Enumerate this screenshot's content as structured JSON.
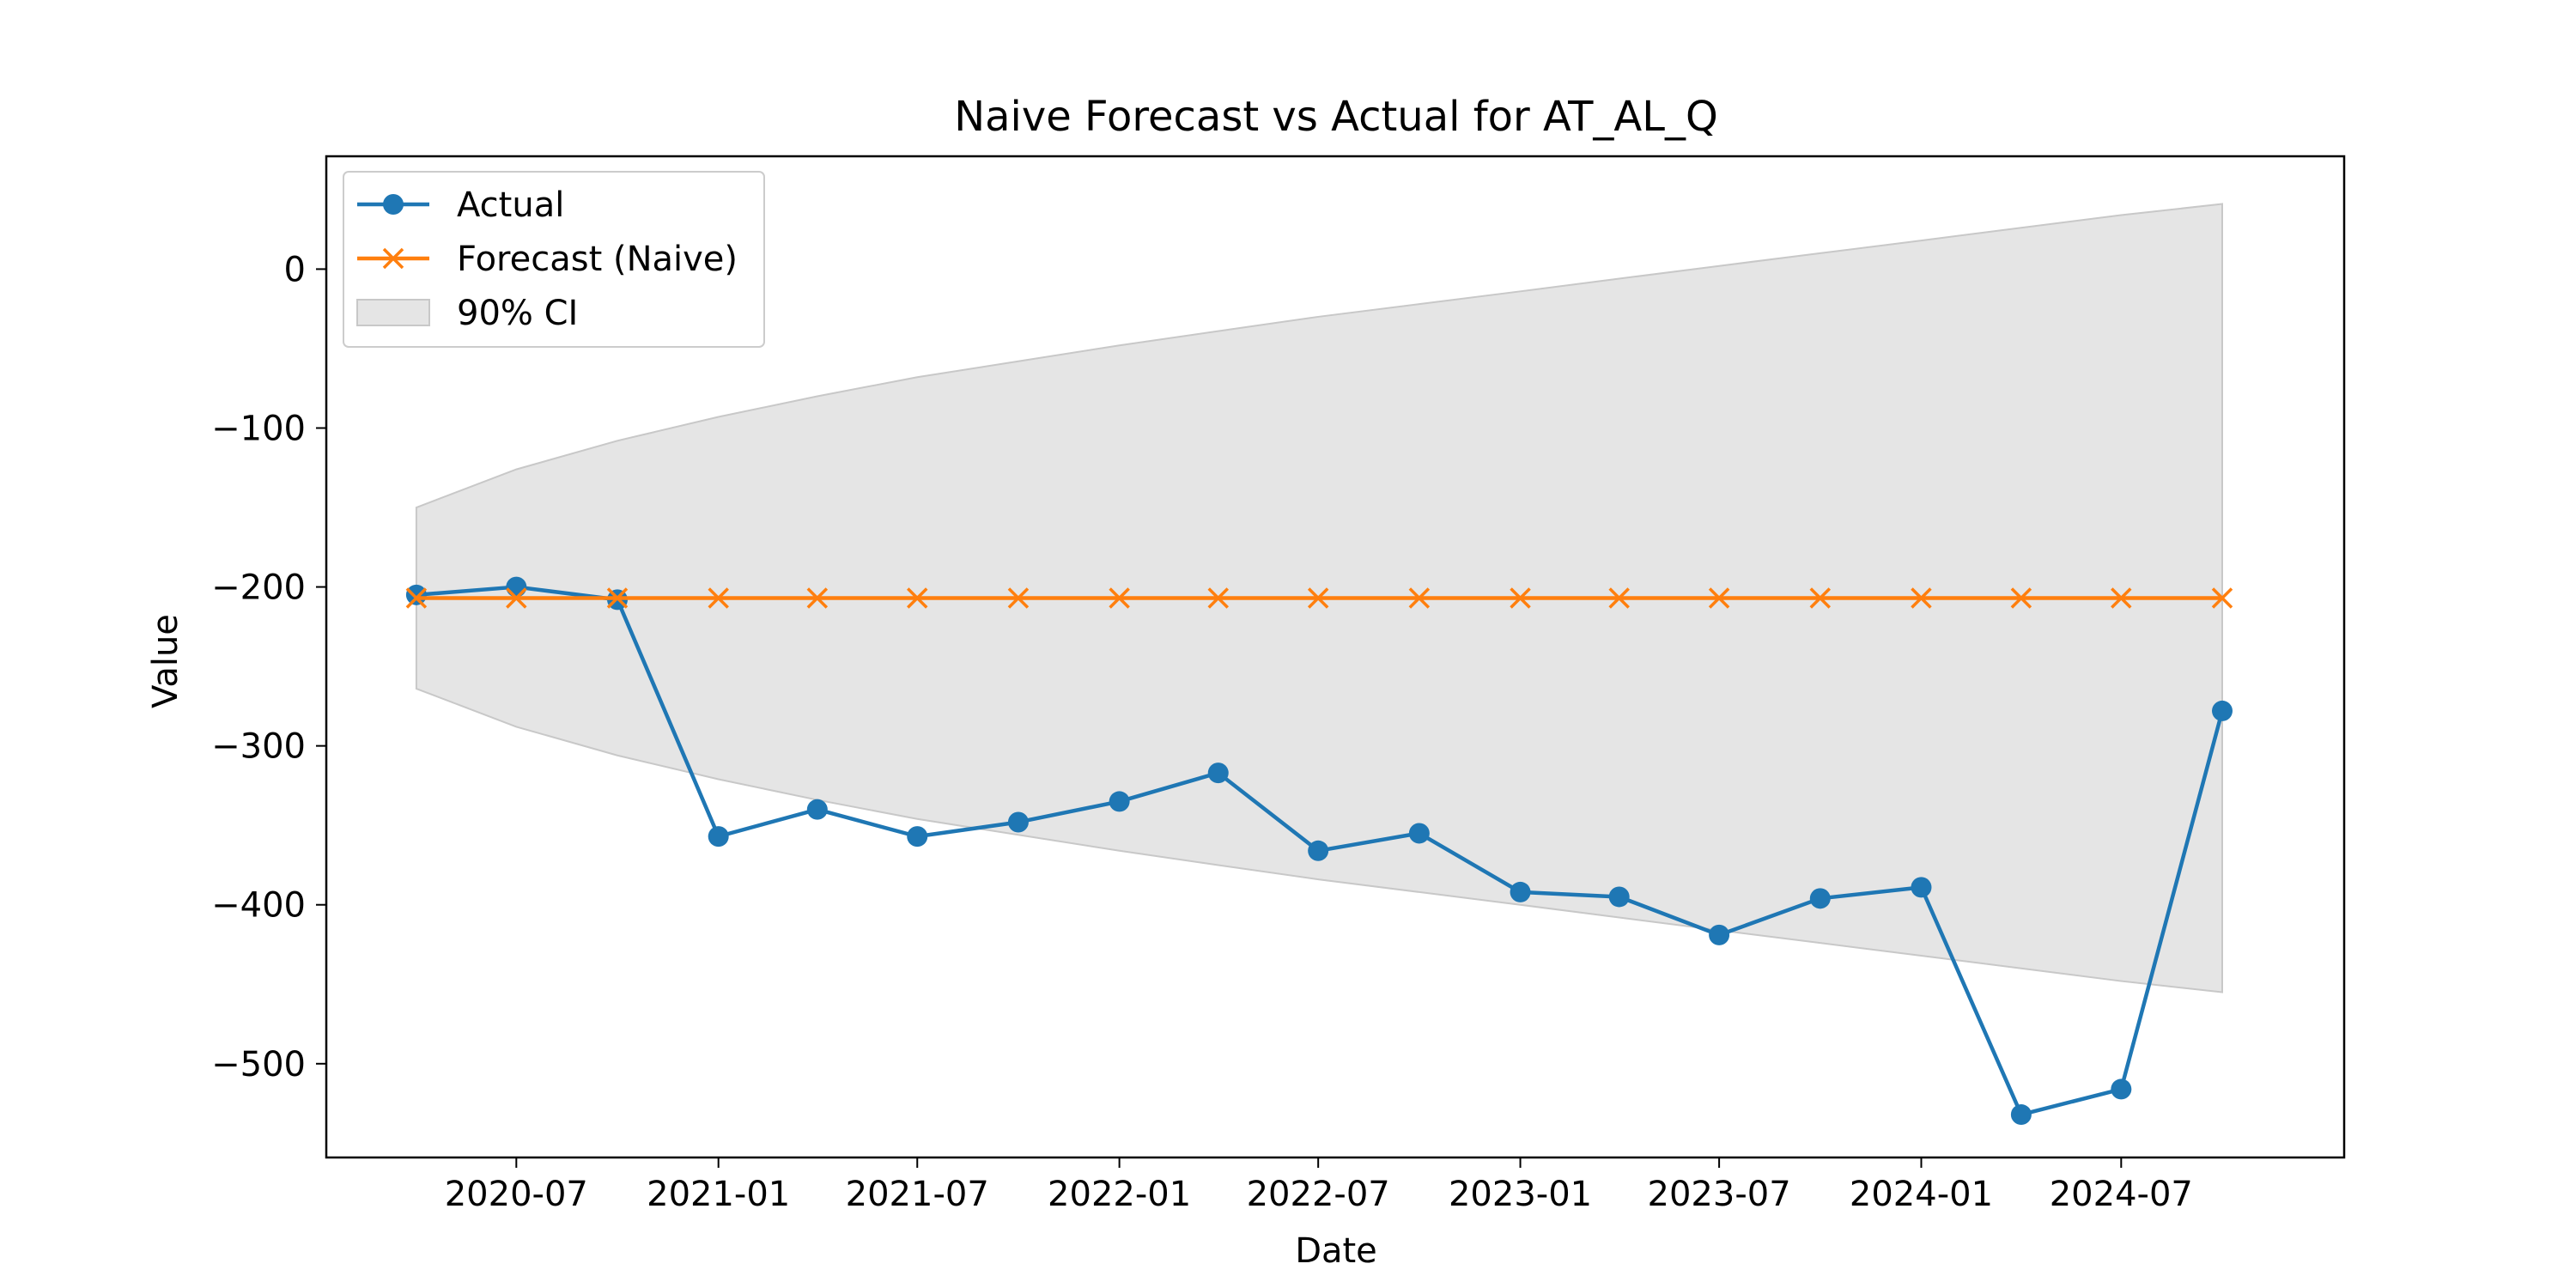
{
  "chart_data": {
    "type": "line",
    "title": "Naive Forecast vs Actual for AT_AL_Q",
    "xlabel": "Date",
    "ylabel": "Value",
    "x_dates": [
      "2020-04-01",
      "2020-07-01",
      "2020-10-01",
      "2021-01-01",
      "2021-04-01",
      "2021-07-01",
      "2021-10-01",
      "2022-01-01",
      "2022-04-01",
      "2022-07-01",
      "2022-10-01",
      "2023-01-01",
      "2023-04-01",
      "2023-07-01",
      "2023-10-01",
      "2024-01-01",
      "2024-04-01",
      "2024-07-01",
      "2024-10-01"
    ],
    "x_ticks": [
      {
        "date": "2020-07-01",
        "label": "2020-07"
      },
      {
        "date": "2021-01-01",
        "label": "2021-01"
      },
      {
        "date": "2021-07-01",
        "label": "2021-07"
      },
      {
        "date": "2022-01-01",
        "label": "2022-01"
      },
      {
        "date": "2022-07-01",
        "label": "2022-07"
      },
      {
        "date": "2023-01-01",
        "label": "2023-01"
      },
      {
        "date": "2023-07-01",
        "label": "2023-07"
      },
      {
        "date": "2024-01-01",
        "label": "2024-01"
      },
      {
        "date": "2024-07-01",
        "label": "2024-07"
      }
    ],
    "xlim": [
      "2020-01-10",
      "2025-01-20"
    ],
    "y_ticks": [
      {
        "value": 0,
        "label": "0"
      },
      {
        "value": -100,
        "label": "−100"
      },
      {
        "value": -200,
        "label": "−200"
      },
      {
        "value": -300,
        "label": "−300"
      },
      {
        "value": -400,
        "label": "−400"
      },
      {
        "value": -500,
        "label": "−500"
      }
    ],
    "ylim": [
      -559,
      71
    ],
    "grid": false,
    "legend_position": "upper left",
    "series": [
      {
        "name": "Actual",
        "color": "#1f77b4",
        "marker": "circle",
        "values": [
          -205,
          -200,
          -208,
          -357,
          -340,
          -357,
          -348,
          -335,
          -317,
          -366,
          -355,
          -392,
          -395,
          -419,
          -396,
          -389,
          -532,
          -516,
          -278
        ]
      },
      {
        "name": "Forecast (Naive)",
        "color": "#ff7f0e",
        "marker": "x",
        "values": [
          -207,
          -207,
          -207,
          -207,
          -207,
          -207,
          -207,
          -207,
          -207,
          -207,
          -207,
          -207,
          -207,
          -207,
          -207,
          -207,
          -207,
          -207,
          -207
        ]
      }
    ],
    "confidence_band": {
      "name": "90% CI",
      "color": "#d3d3d3",
      "upper": [
        -150,
        -126,
        -108,
        -93,
        -80,
        -68,
        -58,
        -48,
        -39,
        -30,
        -22,
        -14,
        -6,
        2,
        10,
        18,
        26,
        34,
        41
      ],
      "lower": [
        -264,
        -288,
        -306,
        -321,
        -334,
        -346,
        -356,
        -366,
        -375,
        -384,
        -392,
        -400,
        -408,
        -416,
        -424,
        -432,
        -440,
        -448,
        -455
      ]
    }
  }
}
